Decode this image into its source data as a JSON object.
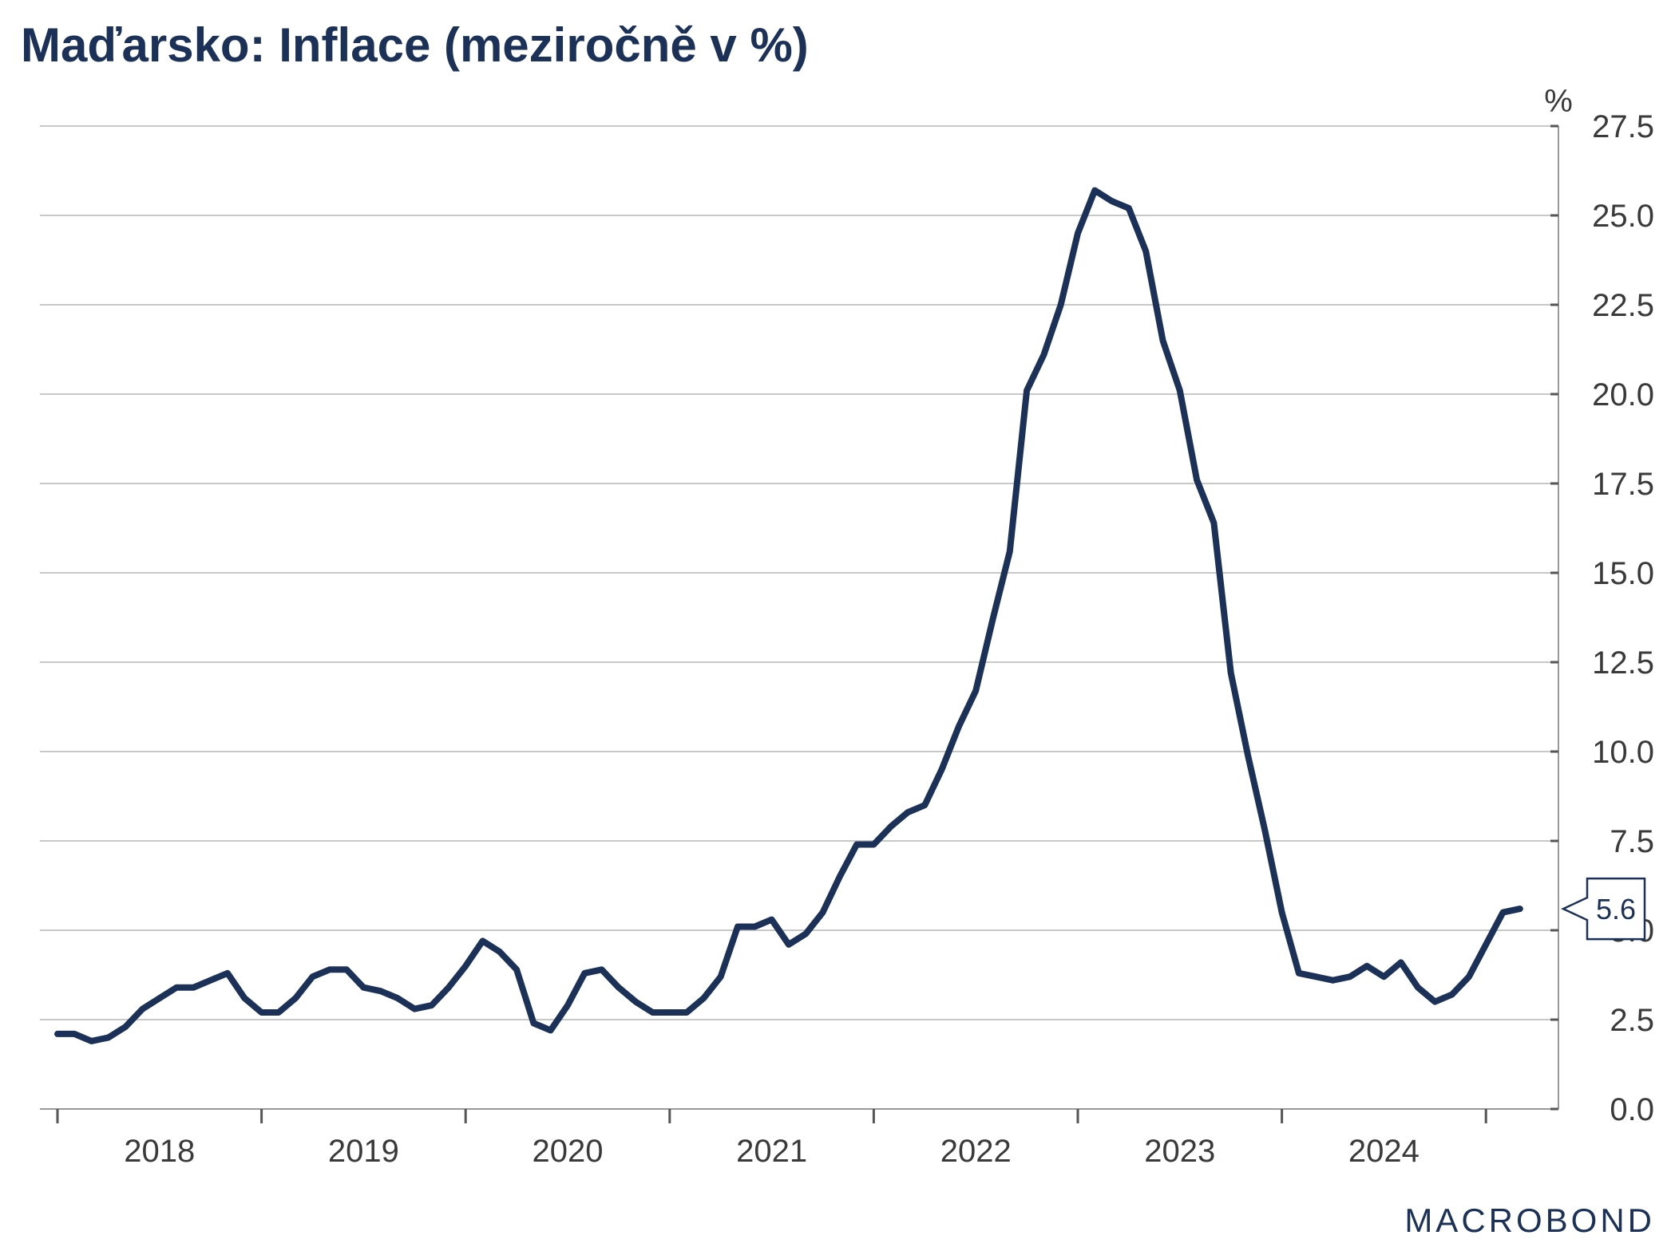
{
  "title": "Maďarsko: Inflace (meziročně v %)",
  "brand": "MACROBOND",
  "colors": {
    "series": "#1b3157",
    "grid": "#c8c8c8",
    "text": "#3a3a3a"
  },
  "chart_data": {
    "type": "line",
    "title": "Maďarsko: Inflace (meziročně v %)",
    "ylabel": "%",
    "ylim": [
      0,
      27.5
    ],
    "yticks": [
      "0.0",
      "2.5",
      "5.0",
      "7.5",
      "10.0",
      "12.5",
      "15.0",
      "17.5",
      "20.0",
      "22.5",
      "25.0",
      "27.5"
    ],
    "x_ticks": [
      "2018",
      "2019",
      "2020",
      "2021",
      "2022",
      "2023",
      "2024"
    ],
    "grid": true,
    "y_axis_position": "right",
    "start": "2018-01",
    "frequency": "monthly",
    "series": [
      {
        "values": [
          2.1,
          2.1,
          1.9,
          2.0,
          2.3,
          2.8,
          3.1,
          3.4,
          3.4,
          3.6,
          3.8,
          3.1,
          2.7,
          2.7,
          3.1,
          3.7,
          3.9,
          3.9,
          3.4,
          3.3,
          3.1,
          2.8,
          2.9,
          3.4,
          4.0,
          4.7,
          4.4,
          3.9,
          2.4,
          2.2,
          2.9,
          3.8,
          3.9,
          3.4,
          3.0,
          2.7,
          2.7,
          2.7,
          3.1,
          3.7,
          5.1,
          5.1,
          5.3,
          4.6,
          4.9,
          5.5,
          6.5,
          7.4,
          7.4,
          7.9,
          8.3,
          8.5,
          9.5,
          10.7,
          11.7,
          13.7,
          15.6,
          20.1,
          21.1,
          22.5,
          24.5,
          25.7,
          25.4,
          25.2,
          24.0,
          21.5,
          20.1,
          17.6,
          16.4,
          12.2,
          9.9,
          7.8,
          5.5,
          3.8,
          3.7,
          3.6,
          3.7,
          4.0,
          3.7,
          4.1,
          3.4,
          3.0,
          3.2,
          3.7,
          4.6,
          5.5,
          5.6
        ],
        "last_value_label": "5.6"
      }
    ]
  }
}
